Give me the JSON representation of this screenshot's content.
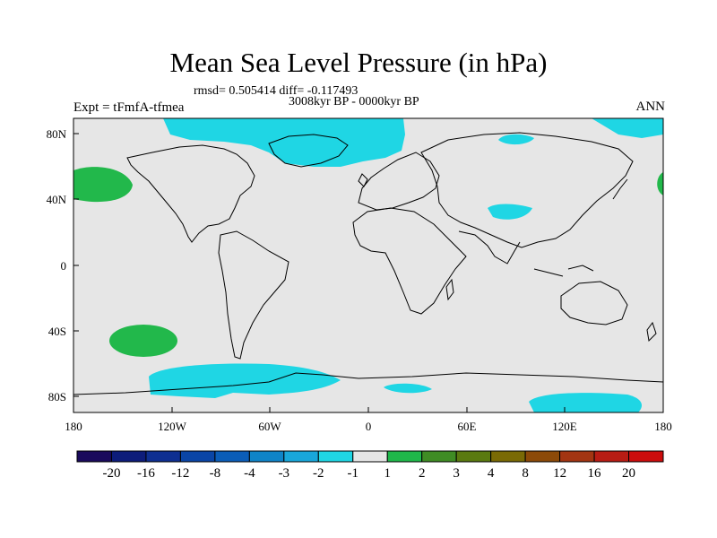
{
  "title": "Mean Sea Level Pressure (in hPa)",
  "stats_line": "rmsd= 0.505414 diff= -0.117493",
  "period_line": "3008kyr BP - 0000kyr BP",
  "experiment_label": "Expt = tFmfA-tfmea",
  "season_label": "ANN",
  "lat_labels": [
    "80N",
    "40N",
    "0",
    "40S",
    "80S"
  ],
  "lon_labels": [
    "180",
    "120W",
    "60W",
    "0",
    "60E",
    "120E",
    "180"
  ],
  "colorbar": {
    "labels": [
      "-20",
      "-16",
      "-12",
      "-8",
      "-4",
      "-3",
      "-2",
      "-1",
      "1",
      "2",
      "3",
      "4",
      "8",
      "12",
      "16",
      "20"
    ],
    "colors": [
      "#1a0a5c",
      "#0d1c7a",
      "#0e2f91",
      "#0a45a6",
      "#0b5db8",
      "#0f84c8",
      "#19a7da",
      "#1fd6e4",
      "#e6e6e6",
      "#1fb84a",
      "#3f8c24",
      "#5a7a10",
      "#7a6a05",
      "#8c4a08",
      "#a33512",
      "#b81c14",
      "#cc0c0c"
    ]
  },
  "colors": {
    "background_field": "#e6e6e6",
    "negative_field": "#1fd6e4",
    "positive_field": "#22b84b",
    "coastline": "#000000"
  }
}
